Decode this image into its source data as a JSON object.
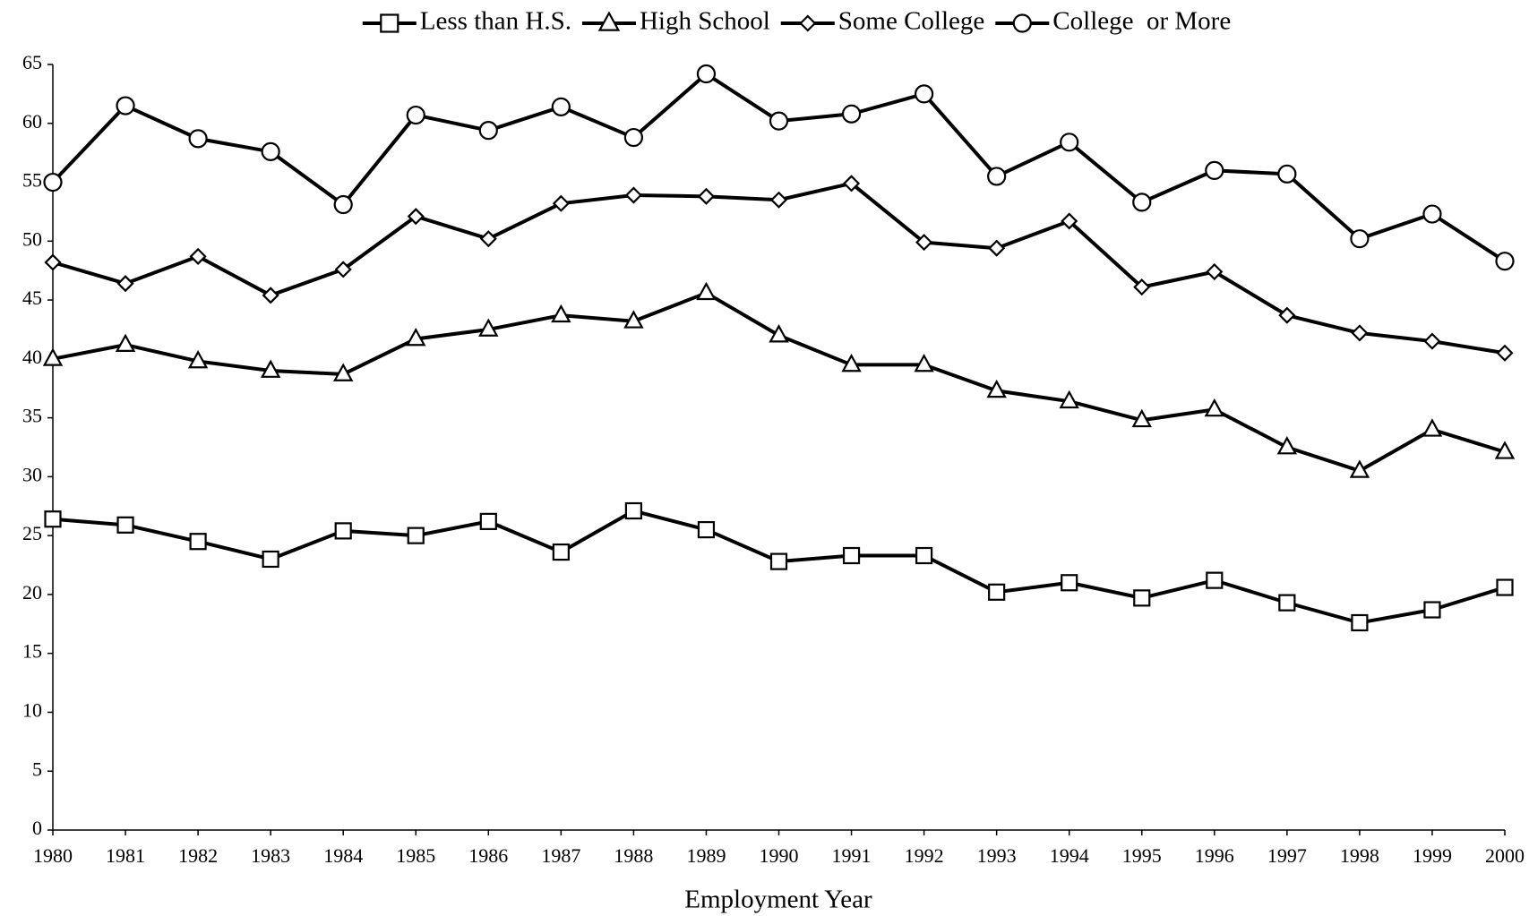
{
  "chart_data": {
    "type": "line",
    "x_label": "Employment Year",
    "x": [
      1980,
      1981,
      1982,
      1983,
      1984,
      1985,
      1986,
      1987,
      1988,
      1989,
      1990,
      1991,
      1992,
      1993,
      1994,
      1995,
      1996,
      1997,
      1998,
      1999,
      2000
    ],
    "xlim": [
      1980,
      2000
    ],
    "xticks": [
      1980,
      1981,
      1982,
      1983,
      1984,
      1985,
      1986,
      1987,
      1988,
      1989,
      1990,
      1991,
      1992,
      1993,
      1994,
      1995,
      1996,
      1997,
      1998,
      1999,
      2000
    ],
    "ylim": [
      0,
      65
    ],
    "yticks": [
      0,
      5,
      10,
      15,
      20,
      25,
      30,
      35,
      40,
      45,
      50,
      55,
      60,
      65
    ],
    "grid": false,
    "legend": "top",
    "series": [
      {
        "name": "Less than H.S.",
        "color": "#000000",
        "marker": "square",
        "values": [
          26.4,
          25.9,
          24.5,
          23.0,
          25.4,
          25.0,
          26.2,
          23.6,
          27.1,
          25.5,
          22.8,
          23.3,
          23.3,
          20.2,
          21.0,
          19.7,
          21.2,
          19.3,
          17.6,
          18.7,
          20.6
        ]
      },
      {
        "name": "High School",
        "color": "#000000",
        "marker": "triangle",
        "values": [
          40.0,
          41.2,
          39.8,
          39.0,
          38.7,
          41.7,
          42.5,
          43.7,
          43.2,
          45.6,
          42.0,
          39.5,
          39.5,
          37.3,
          36.4,
          34.8,
          35.7,
          32.5,
          30.5,
          34.0,
          32.1
        ]
      },
      {
        "name": "Some College",
        "color": "#000000",
        "marker": "diamond",
        "values": [
          48.2,
          46.4,
          48.7,
          45.4,
          47.6,
          52.1,
          50.2,
          53.2,
          53.9,
          53.8,
          53.5,
          54.9,
          49.9,
          49.4,
          51.7,
          46.1,
          47.4,
          43.7,
          42.2,
          41.5,
          40.5
        ]
      },
      {
        "name": "College  or More",
        "color": "#000000",
        "marker": "circle",
        "values": [
          55.0,
          61.5,
          58.7,
          57.6,
          53.1,
          60.7,
          59.4,
          61.4,
          58.8,
          64.2,
          60.2,
          60.8,
          62.5,
          55.5,
          58.4,
          53.3,
          56.0,
          55.7,
          50.2,
          52.3,
          48.3
        ]
      }
    ]
  }
}
